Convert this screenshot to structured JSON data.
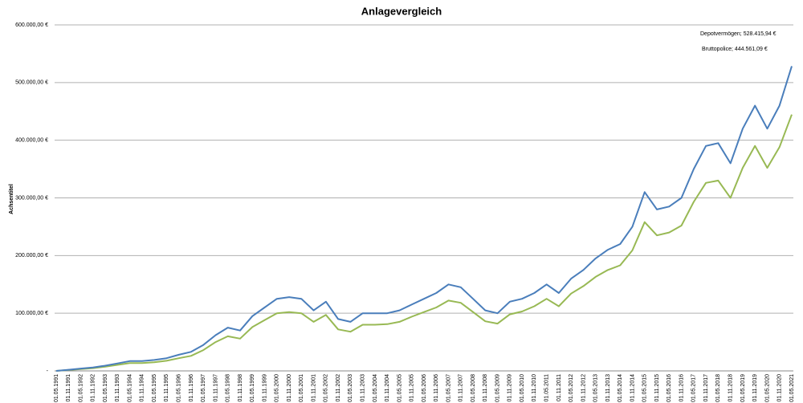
{
  "chart_data": {
    "type": "line",
    "title": "Anlagevergleich",
    "y_label": "Achsentitel",
    "annotations": [
      "Depotvermögen;  528.415,94 €",
      "Bruttopolice;  444.561,09 €"
    ],
    "categories": [
      "01.05.1991",
      "01.11.1991",
      "01.05.1992",
      "01.11.1992",
      "01.05.1993",
      "01.11.1993",
      "01.05.1994",
      "01.11.1994",
      "01.05.1995",
      "01.11.1995",
      "01.05.1996",
      "01.11.1996",
      "01.05.1997",
      "01.11.1997",
      "01.05.1998",
      "01.11.1998",
      "01.05.1999",
      "01.11.1999",
      "01.05.2000",
      "01.11.2000",
      "01.05.2001",
      "01.11.2001",
      "01.05.2002",
      "01.11.2002",
      "01.05.2003",
      "01.11.2003",
      "01.05.2004",
      "01.11.2004",
      "01.05.2005",
      "01.11.2005",
      "01.05.2006",
      "01.11.2006",
      "01.05.2007",
      "01.11.2007",
      "01.05.2008",
      "01.11.2008",
      "01.05.2009",
      "01.11.2009",
      "01.05.2010",
      "01.11.2010",
      "01.05.2011",
      "01.11.2011",
      "01.05.2012",
      "01.11.2012",
      "01.05.2013",
      "01.11.2013",
      "01.05.2014",
      "01.11.2014",
      "01.05.2015",
      "01.11.2015",
      "01.05.2016",
      "01.11.2016",
      "01.05.2017",
      "01.11.2017",
      "01.05.2018",
      "01.11.2018",
      "01.05.2019",
      "01.11.2019",
      "01.05.2020",
      "01.11.2020",
      "01.05.2021"
    ],
    "series": [
      {
        "color": "#4a7ebb",
        "values": [
          0,
          2000,
          4000,
          6000,
          9000,
          13000,
          17000,
          17000,
          19000,
          22000,
          28000,
          33000,
          45000,
          62000,
          75000,
          70000,
          95000,
          110000,
          125000,
          128000,
          125000,
          105000,
          120000,
          90000,
          85000,
          100000,
          100000,
          100000,
          105000,
          115000,
          125000,
          135000,
          150000,
          145000,
          125000,
          105000,
          100000,
          120000,
          125000,
          135000,
          150000,
          135000,
          160000,
          175000,
          195000,
          210000,
          220000,
          250000,
          310000,
          280000,
          285000,
          300000,
          350000,
          390000,
          395000,
          360000,
          420000,
          460000,
          420000,
          460000,
          528415.94
        ]
      },
      {
        "color": "#98b954",
        "values": [
          0,
          1600,
          3200,
          4800,
          7200,
          10500,
          13500,
          13500,
          15000,
          17500,
          22000,
          26000,
          36000,
          50000,
          60000,
          56000,
          76000,
          88000,
          100000,
          102000,
          100000,
          85000,
          97000,
          72000,
          68000,
          80000,
          80000,
          81000,
          85000,
          94000,
          102000,
          110000,
          122000,
          118000,
          102000,
          86000,
          82000,
          98000,
          103000,
          112000,
          125000,
          112000,
          134000,
          147000,
          163000,
          175000,
          183000,
          209000,
          258000,
          235000,
          240000,
          252000,
          293000,
          326000,
          330000,
          300000,
          352000,
          390000,
          352000,
          388000,
          444561.09
        ]
      }
    ],
    "ylim": [
      0,
      600000
    ],
    "yticks": [
      {
        "value": 0,
        "label": "-"
      },
      {
        "value": 100000,
        "label": "100.000,00 €"
      },
      {
        "value": 200000,
        "label": "200.000,00 €"
      },
      {
        "value": 300000,
        "label": "300.000,00 €"
      },
      {
        "value": 400000,
        "label": "400.000,00 €"
      },
      {
        "value": 500000,
        "label": "500.000,00 €"
      },
      {
        "value": 600000,
        "label": "600.000,00 €"
      }
    ],
    "grid": true
  }
}
